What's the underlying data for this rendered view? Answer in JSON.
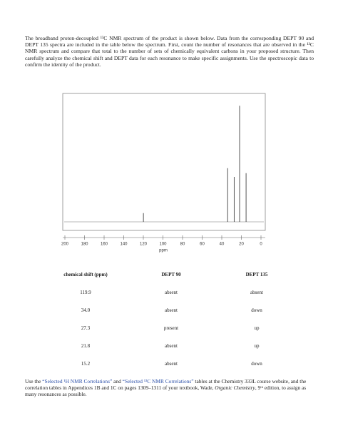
{
  "intro": "The broadband proton-decoupled ¹³C NMR spectrum of the product is shown below. Data from the corresponding DEPT 90 and DEPT 135 spectra are included in the table below the spectrum. First, count the number of resonances that are observed in the ¹³C NMR spectrum and compare that total to the number of sets of chemically equivalent carbons in your proposed structure. Then carefully analyze the chemical shift and DEPT data for each resonance to make specific assignments. Use the spectroscopic data to confirm the identity of the product.",
  "chart_data": {
    "type": "spectrum",
    "x_label": "ppm",
    "x": [
      119.9,
      34.0,
      27.3,
      21.8,
      15.2
    ],
    "values": [
      7,
      43,
      36,
      93,
      39
    ],
    "color": "#555555",
    "xlim": [
      200,
      0
    ],
    "ylim": [
      0,
      100
    ],
    "xticks": [
      200,
      180,
      160,
      140,
      120,
      100,
      80,
      60,
      40,
      20,
      0
    ]
  },
  "table": {
    "headers": [
      "chemical shift (ppm)",
      "DEPT 90",
      "DEPT 135"
    ],
    "rows": [
      [
        "119.9",
        "absent",
        "absent"
      ],
      [
        "34.0",
        "absent",
        "down"
      ],
      [
        "27.3",
        "present",
        "up"
      ],
      [
        "21.8",
        "absent",
        "up"
      ],
      [
        "15.2",
        "absent",
        "down"
      ]
    ]
  },
  "footer": {
    "segments": [
      "Use the ",
      "“Selected ¹H NMR Correlations”",
      " and ",
      "“Selected ¹³C NMR Correlations”",
      " tables at the Chemistry 333L course website, and the correlation tables in Appendices 1B and 1C on pages 1309–1311 of your textbook, Wade, ",
      "Organic Chemistry",
      ", 9ᵗʰ edition, to assign as many resonances as possible."
    ]
  }
}
